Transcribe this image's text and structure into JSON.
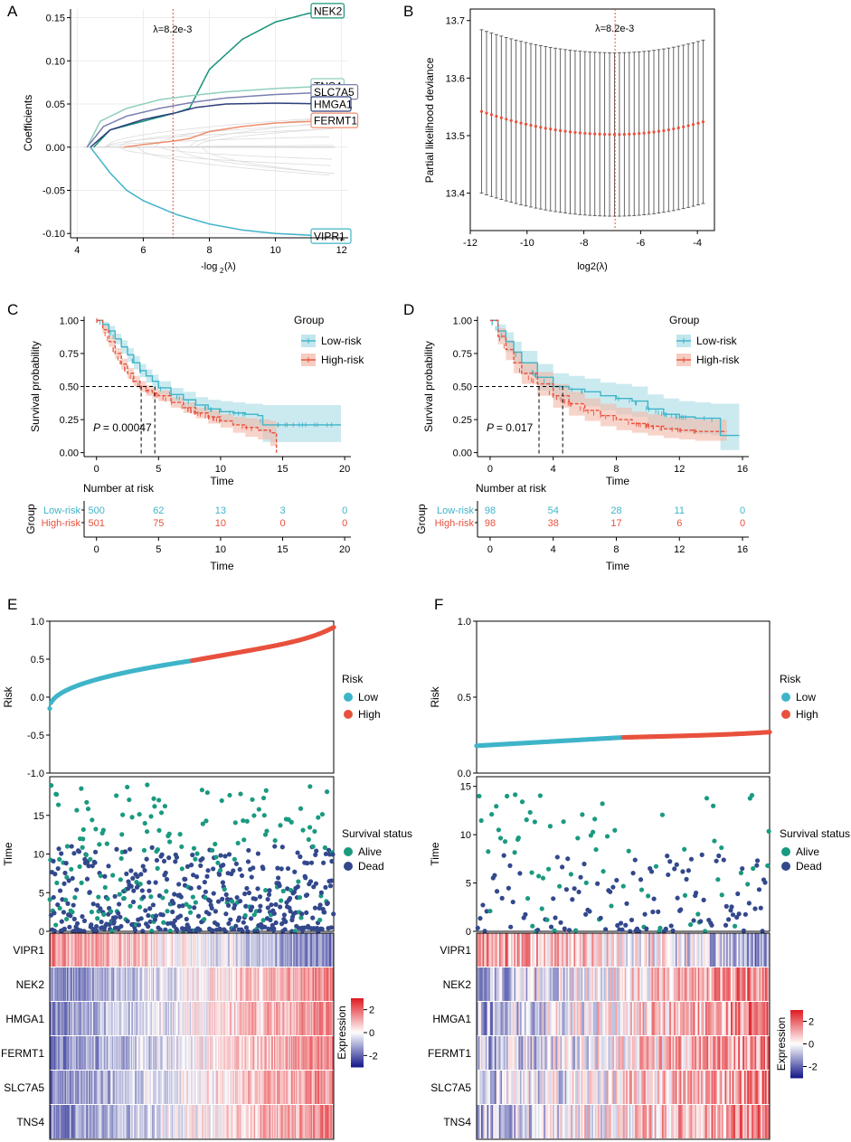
{
  "colors": {
    "teal": "#17937a",
    "low": "#3fb4c9",
    "high": "#e8513d",
    "lowFill": "#a8dce5",
    "highFill": "#f2b8a6",
    "black": "#000000",
    "grey": "#d9d9d9",
    "alive": "#1a9a80",
    "dead": "#33488c",
    "heatBlue": "#1a1f8c",
    "heatRed": "#e02027"
  },
  "chart_data": [
    {
      "panel": "A",
      "type": "line",
      "title": "",
      "xlabel": "-log2(λ)",
      "ylabel": "Coefficients",
      "xlim": [
        3.8,
        12.2
      ],
      "ylim": [
        -0.105,
        0.16
      ],
      "xticks": [
        4,
        6,
        8,
        10,
        12
      ],
      "yticks": [
        -0.1,
        -0.05,
        0.0,
        0.05,
        0.1,
        0.15
      ],
      "ytick_labels": [
        "-0.10",
        "-0.05",
        "0.00",
        "0.05",
        "0.10",
        "0.15"
      ],
      "vline": {
        "x": 6.9,
        "label": "λ=8.2e-3"
      },
      "series": [
        {
          "name": "NEK2",
          "color": "#17937a",
          "x": [
            4.5,
            5,
            6,
            7,
            7.4,
            8,
            9,
            10,
            11,
            11.8
          ],
          "y": [
            0,
            0.02,
            0.03,
            0.04,
            0.045,
            0.09,
            0.125,
            0.145,
            0.155,
            0.158
          ]
        },
        {
          "name": "TNS4",
          "color": "#8fcfbe",
          "x": [
            4.3,
            4.7,
            5.5,
            6.5,
            7.5,
            8.5,
            10,
            11.8
          ],
          "y": [
            0,
            0.03,
            0.045,
            0.055,
            0.06,
            0.064,
            0.068,
            0.071
          ]
        },
        {
          "name": "SLC7A5",
          "color": "#7a7fb0",
          "x": [
            4.3,
            4.8,
            5.5,
            6.5,
            7.5,
            8.5,
            10,
            11.8
          ],
          "y": [
            0,
            0.024,
            0.036,
            0.045,
            0.052,
            0.057,
            0.061,
            0.064
          ]
        },
        {
          "name": "HMGA1",
          "color": "#2e3f7e",
          "x": [
            4.4,
            5,
            6,
            7,
            7.6,
            8.5,
            10,
            11.8
          ],
          "y": [
            0,
            0.02,
            0.032,
            0.04,
            0.046,
            0.05,
            0.051,
            0.05
          ]
        },
        {
          "name": "FERMT1",
          "color": "#ef8d6c",
          "x": [
            5.4,
            6,
            6.9,
            7.4,
            8,
            9,
            10,
            11.8
          ],
          "y": [
            0,
            0.003,
            0.007,
            0.01,
            0.018,
            0.024,
            0.028,
            0.031
          ]
        },
        {
          "name": "VIPR1",
          "color": "#3fb4c9",
          "x": [
            4.4,
            5,
            5.5,
            6,
            7,
            8,
            9,
            10,
            11,
            11.8
          ],
          "y": [
            0,
            -0.03,
            -0.05,
            -0.062,
            -0.078,
            -0.089,
            -0.096,
            -0.1,
            -0.102,
            -0.103
          ]
        }
      ],
      "gene_labels": [
        "NEK2",
        "TNS4",
        "SLC7A5",
        "HMGA1",
        "FERMT1",
        "VIPR1"
      ]
    },
    {
      "panel": "B",
      "type": "scatter",
      "title": "",
      "xlabel": "log2(λ)",
      "ylabel": "Partial likelihood deviance",
      "xlim": [
        -12,
        -3.4
      ],
      "ylim": [
        13.335,
        13.72
      ],
      "xticks": [
        -12,
        -10,
        -8,
        -6,
        -4
      ],
      "yticks": [
        13.4,
        13.5,
        13.6,
        13.7
      ],
      "vline": {
        "x": -6.9,
        "label": "λ=8.2e-3"
      },
      "points": {
        "x_start": -11.6,
        "x_end": -3.8,
        "n": 46,
        "mean_at_left": 13.542,
        "mean_min": 13.502,
        "x_min": -6.9,
        "mean_at_right": 13.524,
        "halfwidth": 0.142
      }
    },
    {
      "panel": "C",
      "type": "line",
      "xlabel": "Time",
      "ylabel": "Survival probability",
      "xlim": [
        -1,
        20.5
      ],
      "ylim": [
        -0.03,
        1.03
      ],
      "xticks": [
        0,
        5,
        10,
        15,
        20
      ],
      "yticks": [
        0.0,
        0.25,
        0.5,
        0.75,
        1.0
      ],
      "ytick_labels": [
        "0.00",
        "0.25",
        "0.50",
        "0.75",
        "1.00"
      ],
      "legend": {
        "title": "Group",
        "items": [
          "Low-risk",
          "High-risk"
        ]
      },
      "pvalue": "= 0.00047",
      "median_times": [
        3.6,
        4.7
      ],
      "series": [
        {
          "name": "Low-risk",
          "x": [
            0,
            0.5,
            1,
            1.5,
            2,
            2.5,
            3,
            3.5,
            4,
            4.5,
            5,
            6,
            7,
            8,
            9,
            10,
            11,
            12,
            13,
            13.4,
            14,
            14.5,
            15,
            17,
            19.7
          ],
          "y": [
            1,
            0.97,
            0.92,
            0.86,
            0.8,
            0.74,
            0.68,
            0.62,
            0.58,
            0.54,
            0.49,
            0.44,
            0.4,
            0.36,
            0.33,
            0.31,
            0.3,
            0.29,
            0.28,
            0.21,
            0.21,
            0.21,
            0.21,
            0.21,
            0.21
          ],
          "lower": [
            1,
            0.95,
            0.88,
            0.82,
            0.75,
            0.69,
            0.63,
            0.57,
            0.53,
            0.49,
            0.44,
            0.39,
            0.34,
            0.3,
            0.26,
            0.23,
            0.21,
            0.19,
            0.16,
            0.08,
            0.08,
            0.08,
            0.08,
            0.08,
            0.08
          ],
          "upper": [
            1,
            0.99,
            0.96,
            0.9,
            0.85,
            0.79,
            0.73,
            0.67,
            0.63,
            0.59,
            0.54,
            0.49,
            0.46,
            0.42,
            0.4,
            0.39,
            0.38,
            0.37,
            0.37,
            0.36,
            0.36,
            0.36,
            0.36,
            0.36,
            0.36
          ]
        },
        {
          "name": "High-risk",
          "x": [
            0,
            0.5,
            1,
            1.5,
            2,
            2.5,
            3,
            3.5,
            4,
            4.5,
            5,
            6,
            7,
            8,
            9,
            10,
            11,
            12,
            13,
            14,
            14.5
          ],
          "y": [
            1,
            0.93,
            0.84,
            0.75,
            0.67,
            0.6,
            0.54,
            0.5,
            0.47,
            0.45,
            0.43,
            0.38,
            0.34,
            0.3,
            0.27,
            0.24,
            0.21,
            0.19,
            0.17,
            0.15,
            0.0
          ],
          "lower": [
            1,
            0.9,
            0.8,
            0.71,
            0.63,
            0.56,
            0.5,
            0.46,
            0.43,
            0.41,
            0.39,
            0.34,
            0.3,
            0.26,
            0.22,
            0.19,
            0.15,
            0.12,
            0.1,
            0.05,
            0.0
          ],
          "upper": [
            1,
            0.96,
            0.88,
            0.79,
            0.71,
            0.64,
            0.58,
            0.54,
            0.51,
            0.49,
            0.47,
            0.42,
            0.38,
            0.34,
            0.32,
            0.29,
            0.27,
            0.26,
            0.25,
            0.24,
            0.0
          ]
        }
      ],
      "risk_table": {
        "title": "Number at risk",
        "xlabel": "Time",
        "ylabel": "Group",
        "times": [
          0,
          5,
          10,
          15,
          20
        ],
        "rows": [
          {
            "name": "Low-risk",
            "counts": [
              "500",
              "62",
              "13",
              "3",
              "0"
            ]
          },
          {
            "name": "High-risk",
            "counts": [
              "501",
              "75",
              "10",
              "0",
              "0"
            ]
          }
        ]
      }
    },
    {
      "panel": "D",
      "type": "line",
      "xlabel": "Time",
      "ylabel": "Survival probability",
      "xlim": [
        -0.8,
        16.4
      ],
      "ylim": [
        -0.03,
        1.03
      ],
      "xticks": [
        0,
        4,
        8,
        12,
        16
      ],
      "yticks": [
        0.0,
        0.25,
        0.5,
        0.75,
        1.0
      ],
      "ytick_labels": [
        "0.00",
        "0.25",
        "0.50",
        "0.75",
        "1.00"
      ],
      "legend": {
        "title": "Group",
        "items": [
          "Low-risk",
          "High-risk"
        ]
      },
      "pvalue": "= 0.017",
      "median_times": [
        3.1,
        4.6
      ],
      "series": [
        {
          "name": "Low-risk",
          "x": [
            0,
            0.5,
            1,
            1.5,
            2,
            3,
            4,
            5,
            6,
            7,
            8,
            9,
            10,
            11,
            12,
            13,
            14,
            14.6,
            15.8
          ],
          "y": [
            1,
            0.92,
            0.84,
            0.76,
            0.68,
            0.57,
            0.5,
            0.48,
            0.46,
            0.43,
            0.41,
            0.39,
            0.33,
            0.29,
            0.27,
            0.26,
            0.26,
            0.13,
            0.13
          ],
          "lower": [
            1,
            0.86,
            0.76,
            0.67,
            0.59,
            0.47,
            0.4,
            0.38,
            0.35,
            0.32,
            0.29,
            0.27,
            0.21,
            0.17,
            0.15,
            0.14,
            0.13,
            0.02,
            0.02
          ],
          "upper": [
            1,
            0.97,
            0.91,
            0.84,
            0.77,
            0.67,
            0.6,
            0.58,
            0.56,
            0.53,
            0.52,
            0.5,
            0.44,
            0.41,
            0.39,
            0.38,
            0.37,
            0.37,
            0.37
          ]
        },
        {
          "name": "High-risk",
          "x": [
            0,
            0.5,
            1,
            1.5,
            2,
            3,
            4,
            5,
            6,
            7,
            8,
            9,
            10,
            11,
            12,
            13,
            14,
            14.6,
            15
          ],
          "y": [
            1,
            0.88,
            0.78,
            0.68,
            0.6,
            0.52,
            0.43,
            0.37,
            0.32,
            0.28,
            0.25,
            0.22,
            0.2,
            0.18,
            0.17,
            0.16,
            0.16,
            0.16,
            0.16
          ],
          "lower": [
            1,
            0.82,
            0.7,
            0.6,
            0.52,
            0.43,
            0.34,
            0.28,
            0.24,
            0.2,
            0.17,
            0.15,
            0.13,
            0.11,
            0.1,
            0.09,
            0.09,
            0.09,
            0.09
          ],
          "upper": [
            1,
            0.94,
            0.85,
            0.76,
            0.68,
            0.61,
            0.52,
            0.46,
            0.41,
            0.37,
            0.34,
            0.31,
            0.29,
            0.27,
            0.26,
            0.25,
            0.25,
            0.25,
            0.25
          ]
        }
      ],
      "risk_table": {
        "title": "Number at risk",
        "xlabel": "Time",
        "ylabel": "Group",
        "times": [
          0,
          4,
          8,
          12,
          16
        ],
        "rows": [
          {
            "name": "Low-risk",
            "counts": [
              "98",
              "54",
              "28",
              "11",
              "0"
            ]
          },
          {
            "name": "High-risk",
            "counts": [
              "98",
              "38",
              "17",
              "6",
              "0"
            ]
          }
        ]
      }
    },
    {
      "panel": "E",
      "type": "scatter",
      "risk": {
        "ylabel": "Risk",
        "ylim": [
          -1.0,
          1.0
        ],
        "yticks": [
          -1.0,
          -0.5,
          0.0,
          0.5,
          1.0
        ],
        "ytick_labels": [
          "-1.0",
          "-0.5",
          "0.0",
          "0.5",
          "1.0"
        ],
        "n": 1001,
        "low_range": [
          -0.15,
          0.48
        ],
        "high_range": [
          0.48,
          0.92
        ],
        "legend_title": "Risk",
        "legend_items": [
          "Low",
          "High"
        ]
      },
      "status": {
        "ylabel": "Time",
        "ylim": [
          0,
          20
        ],
        "yticks": [
          0,
          5,
          10,
          15
        ],
        "legend_title": "Survival status",
        "legend_items": [
          "Alive",
          "Dead"
        ],
        "n_points": 600,
        "max_time": 20
      },
      "heatmap": {
        "genes": [
          "VIPR1",
          "NEK2",
          "HMGA1",
          "FERMT1",
          "SLC7A5",
          "TNS4"
        ],
        "colorbar_label": "Expression",
        "colorbar_ticks": [
          "2",
          "0",
          "-2"
        ],
        "range": [
          -3,
          3
        ],
        "n_columns": 300
      }
    },
    {
      "panel": "F",
      "type": "scatter",
      "risk": {
        "ylabel": "Risk",
        "ylim": [
          0.0,
          1.0
        ],
        "yticks": [
          0.0,
          0.5,
          1.0
        ],
        "ytick_labels": [
          "0.0",
          "0.5",
          "1.0"
        ],
        "n": 196,
        "low_range": [
          0.18,
          0.235
        ],
        "high_range": [
          0.235,
          0.27
        ],
        "legend_title": "Risk",
        "legend_items": [
          "Low",
          "High"
        ]
      },
      "status": {
        "ylabel": "Time",
        "ylim": [
          0,
          16
        ],
        "yticks": [
          0,
          5,
          10,
          15
        ],
        "legend_title": "Survival status",
        "legend_items": [
          "Alive",
          "Dead"
        ],
        "n_points": 190,
        "max_time": 16
      },
      "heatmap": {
        "genes": [
          "VIPR1",
          "NEK2",
          "HMGA1",
          "FERMT1",
          "SLC7A5",
          "TNS4"
        ],
        "colorbar_label": "Expression",
        "colorbar_ticks": [
          "2",
          "0",
          "-2"
        ],
        "range": [
          -3,
          3
        ],
        "n_columns": 196
      }
    }
  ]
}
